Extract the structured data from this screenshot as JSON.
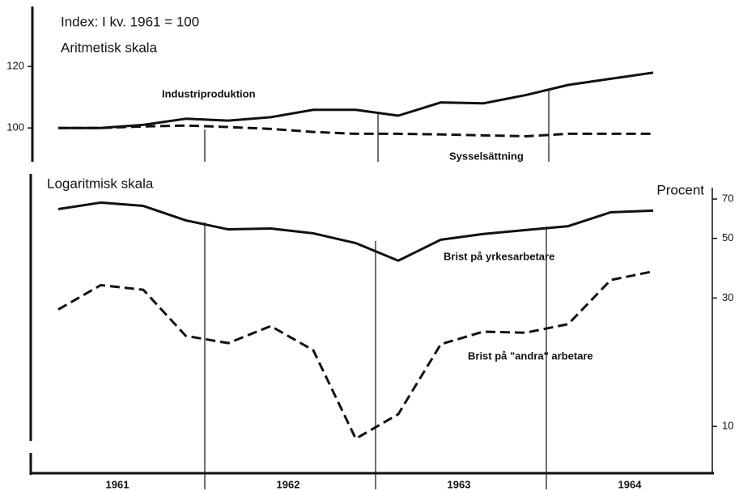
{
  "chart_data": [
    {
      "type": "line",
      "title": "Index: I kv. 1961 = 100",
      "subtitle": "Aritmetisk skala",
      "ylim": [
        89,
        139
      ],
      "yticks": [
        100,
        120
      ],
      "series": [
        {
          "name": "Industriproduktion",
          "color": "#111111",
          "linestyle": "solid",
          "values": [
            100,
            100,
            101,
            103,
            102.4,
            103.5,
            105.9,
            105.9,
            104,
            108.3,
            108,
            110.7,
            114,
            116,
            118
          ]
        },
        {
          "name": "Sysselsättning",
          "color": "#111111",
          "linestyle": "dashed",
          "values": [
            100,
            100,
            100.5,
            100.8,
            100.3,
            99.7,
            98.7,
            98.1,
            98.1,
            97.9,
            97.6,
            97.3,
            98.1,
            98.1,
            98.1
          ]
        }
      ]
    },
    {
      "type": "line",
      "title": "Logaritmisk skala",
      "ylabel": "Procent",
      "log_scale": true,
      "ylim": [
        6.7,
        85
      ],
      "yticks": [
        10,
        30,
        50,
        70
      ],
      "xlabels": [
        "1961",
        "1962",
        "1963",
        "1964"
      ],
      "series": [
        {
          "name": "Brist på yrkesarbetare",
          "color": "#111111",
          "linestyle": "solid",
          "values": [
            64.2,
            67.9,
            66.0,
            58.3,
            54.0,
            54.4,
            52.2,
            48.0,
            41.3,
            49.4,
            51.9,
            53.7,
            55.5,
            62.5,
            63.4
          ]
        },
        {
          "name": "Brist på \"andra\" arbetare",
          "color": "#111111",
          "linestyle": "dashed",
          "values": [
            27.2,
            33.5,
            32.2,
            21.7,
            20.4,
            23.6,
            19.2,
            9.0,
            11.1,
            20.2,
            22.5,
            22.3,
            24.0,
            35.0,
            37.7
          ]
        }
      ]
    }
  ]
}
